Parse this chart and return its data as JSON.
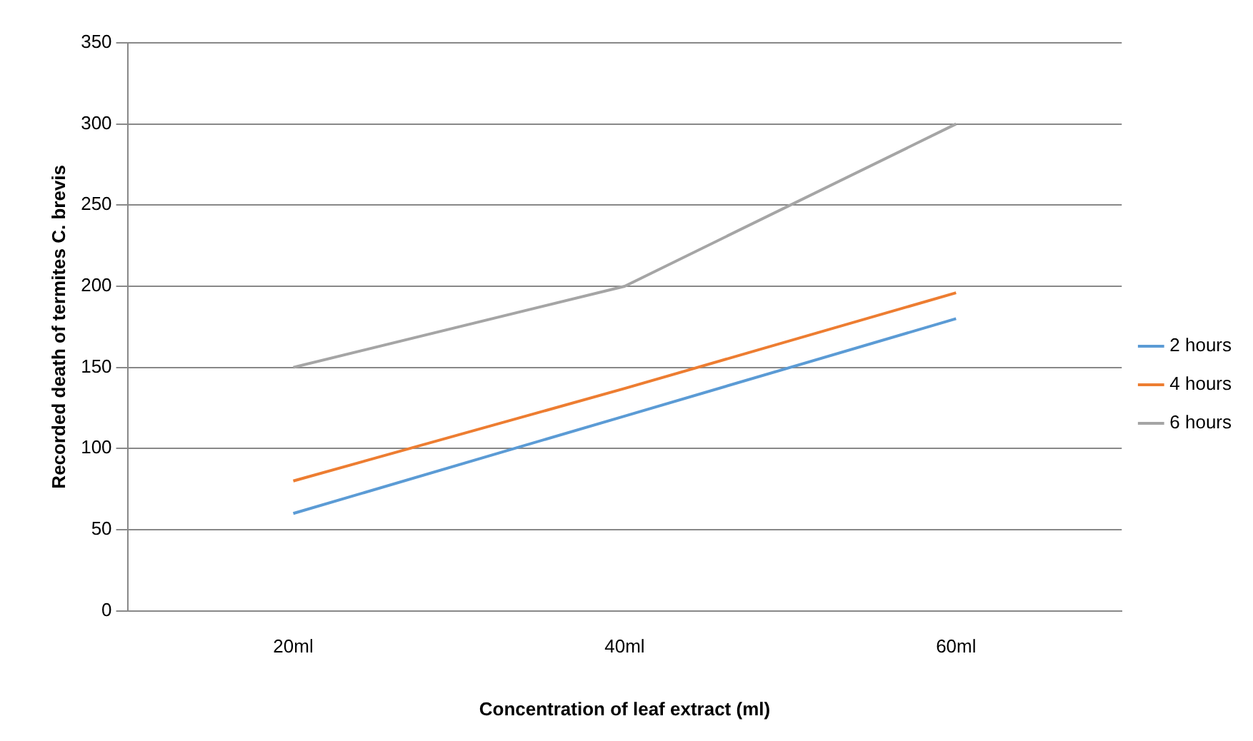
{
  "chart_data": {
    "type": "line",
    "xlabel": "Concentration of leaf extract (ml)",
    "ylabel": "Recorded death of termites C. brevis",
    "categories": [
      "20ml",
      "40ml",
      "60ml"
    ],
    "series": [
      {
        "name": "2 hours",
        "color": "#5b9bd5",
        "values": [
          60,
          120,
          180
        ]
      },
      {
        "name": "4 hours",
        "color": "#ed7d31",
        "values": [
          80,
          137,
          196
        ]
      },
      {
        "name": "6 hours",
        "color": "#a5a5a5",
        "values": [
          150,
          200,
          300
        ]
      }
    ],
    "ylim": [
      0,
      350
    ],
    "yticks": [
      0,
      50,
      100,
      150,
      200,
      250,
      300,
      350
    ],
    "grid": "y",
    "legend": "right",
    "marker": "none",
    "line_style": "solid"
  }
}
